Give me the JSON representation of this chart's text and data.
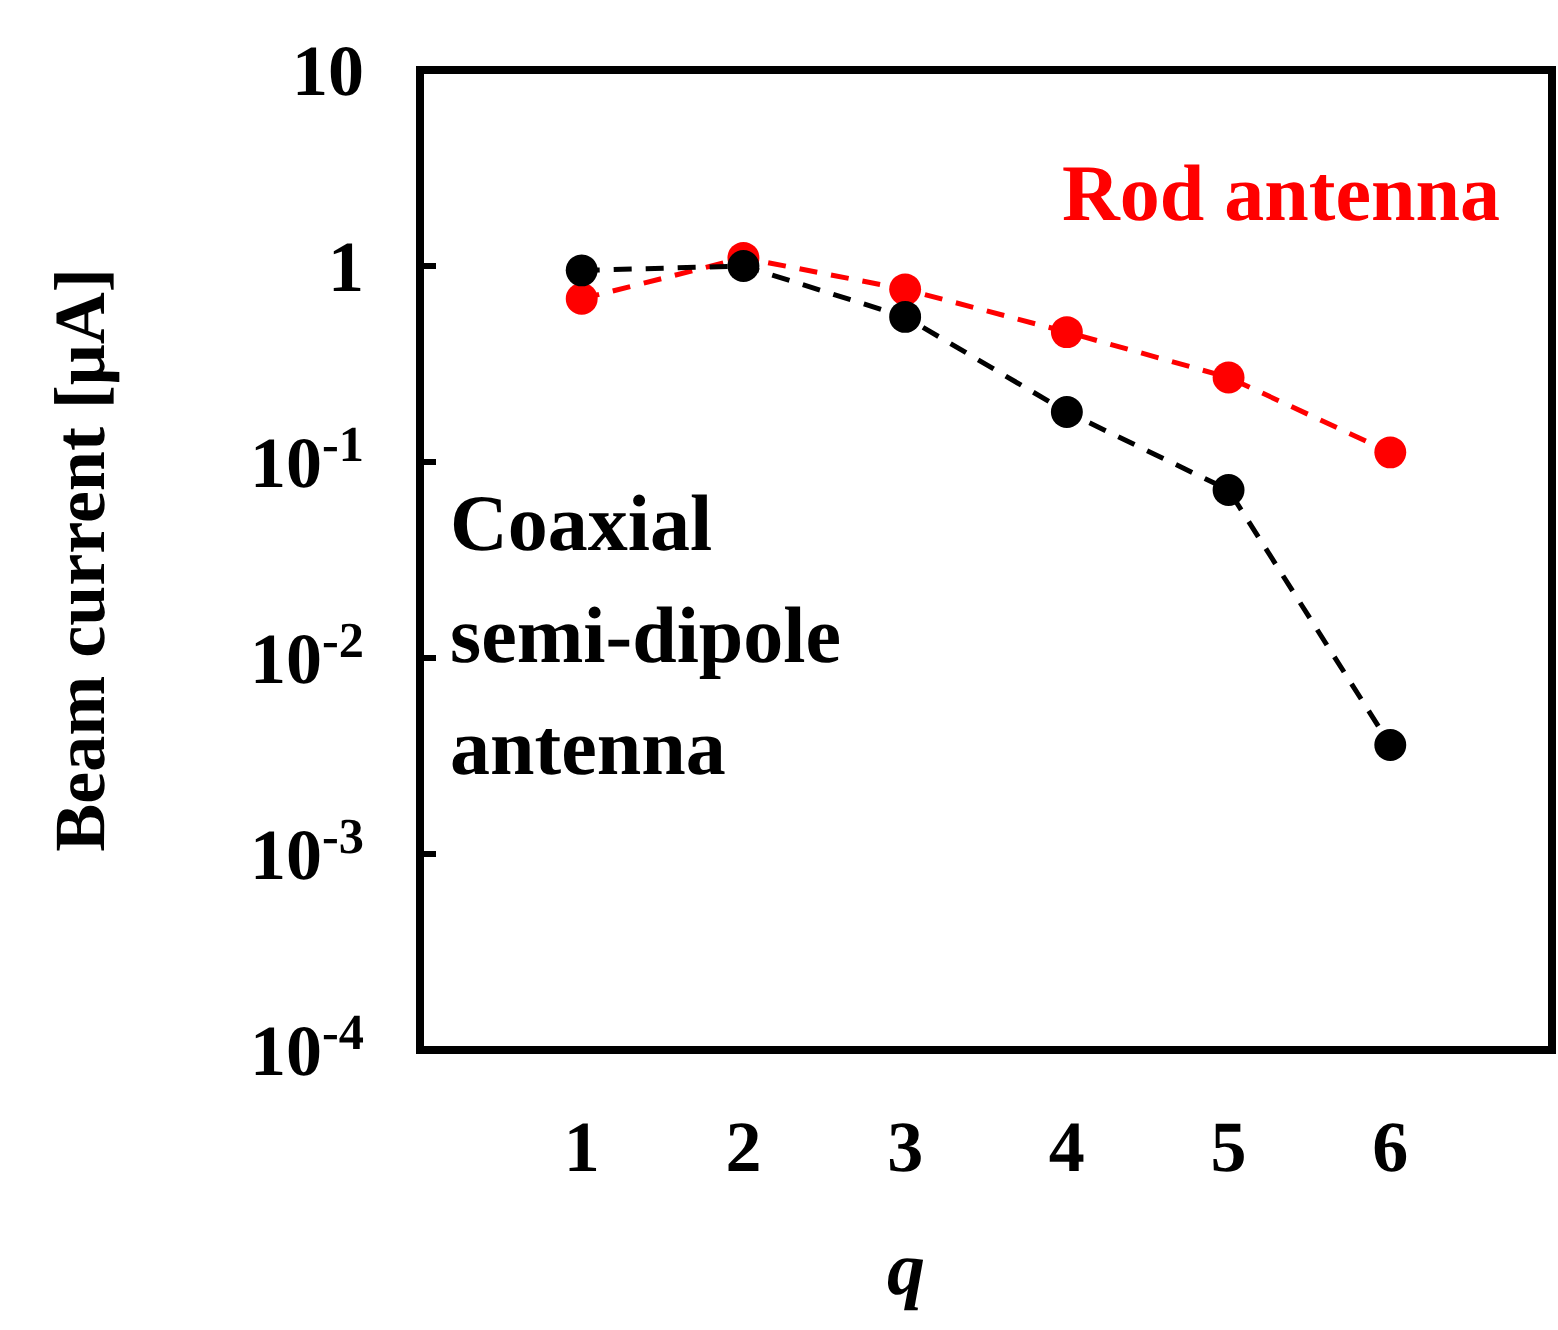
{
  "chart_data": {
    "type": "line",
    "xlabel": "q",
    "ylabel": "Beam current [μA]",
    "x": [
      1,
      2,
      3,
      4,
      5,
      6
    ],
    "series": [
      {
        "name": "Coaxial semi-dipole antenna",
        "color": "#000000",
        "values": [
          0.95,
          1.0,
          0.55,
          0.18,
          0.072,
          0.0036
        ]
      },
      {
        "name": "Rod antenna",
        "color": "#ff0000",
        "values": [
          0.68,
          1.1,
          0.76,
          0.46,
          0.27,
          0.112
        ]
      }
    ],
    "xlim": [
      0,
      7
    ],
    "xticks": [
      1,
      2,
      3,
      4,
      5,
      6
    ],
    "ylim": [
      0.0001,
      10
    ],
    "yticks": [
      {
        "value": 0.0001,
        "label": "10$^{-4}$"
      },
      {
        "value": 0.001,
        "label": "10$^{-3}$"
      },
      {
        "value": 0.01,
        "label": "10$^{-2}$"
      },
      {
        "value": 0.1,
        "label": "10$^{-1}$"
      },
      {
        "value": 1,
        "label": "1"
      },
      {
        "value": 10,
        "label": "10"
      }
    ],
    "log": "y",
    "grid": false,
    "legend": false,
    "marker": "circle",
    "line_style": "dashed"
  }
}
